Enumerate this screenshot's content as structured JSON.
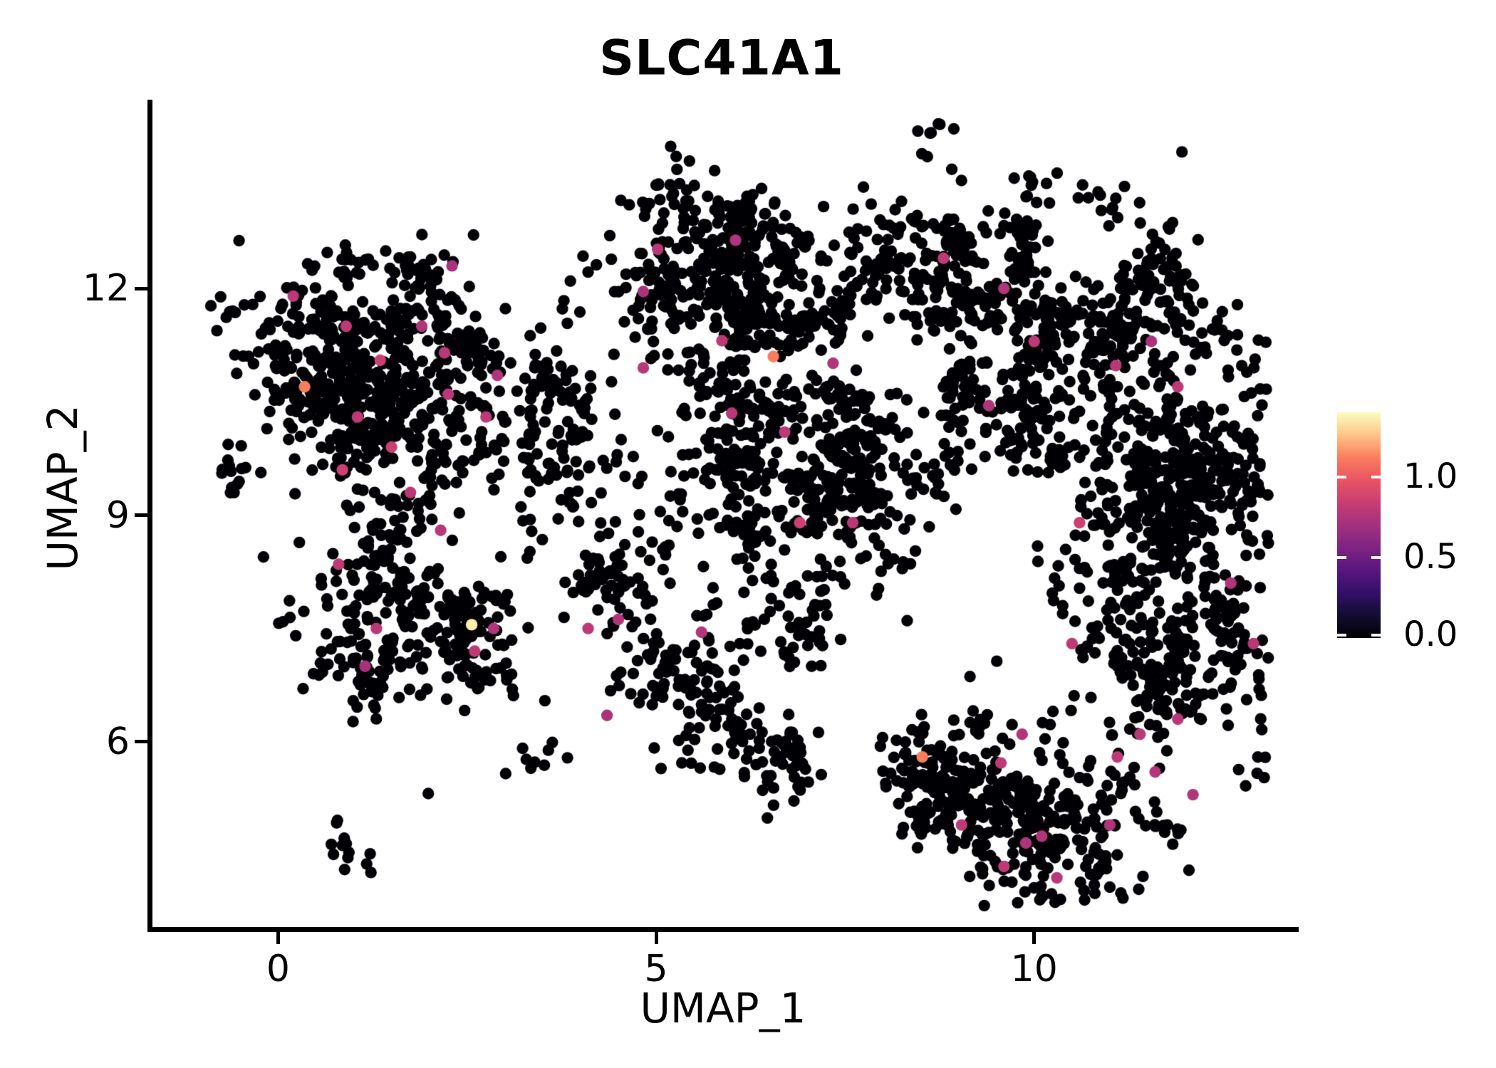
{
  "figure": {
    "title": "SLC41A1"
  },
  "chart_data": {
    "type": "scatter",
    "title": "SLC41A1",
    "xlabel": "UMAP_1",
    "ylabel": "UMAP_2",
    "xlim": [
      -1.7,
      13.47
    ],
    "ylim": [
      3.52,
      14.5
    ],
    "grid": false,
    "x_ticks": [
      {
        "value": 0,
        "label": "0"
      },
      {
        "value": 5,
        "label": "5"
      },
      {
        "value": 10,
        "label": "10"
      }
    ],
    "y_ticks": [
      {
        "value": 12,
        "label": "12"
      },
      {
        "value": 9,
        "label": "9"
      },
      {
        "value": 6,
        "label": "6"
      }
    ],
    "point_radius_px": 8.2,
    "zero_expression_color": "#000004",
    "n_points": 4384,
    "seed": 20,
    "density_clusters": [
      {
        "name": "left-main",
        "cx": 1.35,
        "cy": 10.65,
        "sx": 0.95,
        "sy": 0.82,
        "n": 680
      },
      {
        "name": "left-top-fringe",
        "cx": 2.0,
        "cy": 12.0,
        "sx": 0.55,
        "sy": 0.3,
        "n": 60
      },
      {
        "name": "left-arm",
        "cx": 1.45,
        "cy": 7.6,
        "sx": 0.8,
        "sy": 0.58,
        "n": 200
      },
      {
        "name": "left-arm-knot",
        "cx": 2.62,
        "cy": 7.3,
        "sx": 0.27,
        "sy": 0.27,
        "n": 65
      },
      {
        "name": "left-arm-tip",
        "cx": 1.15,
        "cy": 6.6,
        "sx": 0.35,
        "sy": 0.3,
        "n": 30
      },
      {
        "name": "left-bridge",
        "cx": 3.9,
        "cy": 9.9,
        "sx": 0.75,
        "sy": 0.9,
        "n": 150
      },
      {
        "name": "mid-left-sparse",
        "cx": 4.5,
        "cy": 8.35,
        "sx": 0.5,
        "sy": 0.6,
        "n": 60
      },
      {
        "name": "top-middle",
        "cx": 6.0,
        "cy": 12.05,
        "sx": 0.85,
        "sy": 0.65,
        "n": 500
      },
      {
        "name": "middle",
        "cx": 6.85,
        "cy": 9.4,
        "sx": 0.85,
        "sy": 0.75,
        "n": 500
      },
      {
        "name": "right-top",
        "cx": 8.9,
        "cy": 12.25,
        "sx": 0.8,
        "sy": 0.6,
        "n": 280
      },
      {
        "name": "right-upper-mid",
        "cx": 9.85,
        "cy": 10.85,
        "sx": 0.6,
        "sy": 0.6,
        "n": 120
      },
      {
        "name": "mid-right-bridge",
        "cx": 9.55,
        "cy": 10.1,
        "sx": 0.65,
        "sy": 0.5,
        "n": 70
      },
      {
        "name": "far-right",
        "cx": 11.75,
        "cy": 8.55,
        "sx": 0.8,
        "sy": 1.7,
        "n": 830
      },
      {
        "name": "far-right-top",
        "cx": 11.2,
        "cy": 11.5,
        "sx": 0.65,
        "sy": 0.5,
        "n": 160
      },
      {
        "name": "bottom-right",
        "cx": 9.85,
        "cy": 4.95,
        "sx": 0.75,
        "sy": 0.6,
        "n": 370
      },
      {
        "name": "bottom-arm",
        "cx": 8.6,
        "cy": 5.55,
        "sx": 0.38,
        "sy": 0.26,
        "n": 75
      },
      {
        "name": "trail-a",
        "cx": 5.0,
        "cy": 6.8,
        "sx": 0.35,
        "sy": 0.3,
        "n": 55
      },
      {
        "name": "trail-b",
        "cx": 5.8,
        "cy": 6.2,
        "sx": 0.4,
        "sy": 0.35,
        "n": 60
      },
      {
        "name": "trail-c",
        "cx": 6.6,
        "cy": 5.7,
        "sx": 0.35,
        "sy": 0.3,
        "n": 50
      },
      {
        "name": "trail-d",
        "cx": 6.0,
        "cy": 7.5,
        "sx": 0.45,
        "sy": 0.4,
        "n": 45
      },
      {
        "name": "stray-bottom-left",
        "cx": 1.1,
        "cy": 4.8,
        "sx": 0.45,
        "sy": 0.3,
        "n": 14
      },
      {
        "name": "stray-mid-left",
        "cx": 3.3,
        "cy": 5.8,
        "sx": 0.3,
        "sy": 0.3,
        "n": 10
      }
    ],
    "highlight_points": [
      {
        "x": 0.2,
        "y": 11.9,
        "value": 0.78
      },
      {
        "x": 0.9,
        "y": 11.5,
        "value": 0.8
      },
      {
        "x": 1.9,
        "y": 11.5,
        "value": 0.75
      },
      {
        "x": 2.2,
        "y": 11.15,
        "value": 0.78
      },
      {
        "x": 1.35,
        "y": 11.05,
        "value": 0.85
      },
      {
        "x": 2.25,
        "y": 10.6,
        "value": 0.78
      },
      {
        "x": 2.9,
        "y": 10.85,
        "value": 0.75
      },
      {
        "x": 2.75,
        "y": 10.3,
        "value": 0.8
      },
      {
        "x": 1.05,
        "y": 10.3,
        "value": 0.8
      },
      {
        "x": 1.5,
        "y": 9.9,
        "value": 0.85
      },
      {
        "x": 0.85,
        "y": 9.6,
        "value": 0.85
      },
      {
        "x": 1.75,
        "y": 9.3,
        "value": 0.78
      },
      {
        "x": 2.15,
        "y": 8.8,
        "value": 0.78
      },
      {
        "x": 2.3,
        "y": 12.3,
        "value": 0.72
      },
      {
        "x": 0.35,
        "y": 10.7,
        "value": 1.12
      },
      {
        "x": 0.8,
        "y": 8.35,
        "value": 0.8
      },
      {
        "x": 1.3,
        "y": 7.5,
        "value": 0.78
      },
      {
        "x": 1.15,
        "y": 7.0,
        "value": 0.72
      },
      {
        "x": 2.85,
        "y": 7.5,
        "value": 0.75
      },
      {
        "x": 2.6,
        "y": 7.2,
        "value": 0.8
      },
      {
        "x": 2.56,
        "y": 7.55,
        "value": 1.36
      },
      {
        "x": 4.1,
        "y": 7.5,
        "value": 0.8
      },
      {
        "x": 4.5,
        "y": 7.62,
        "value": 0.75
      },
      {
        "x": 4.35,
        "y": 6.35,
        "value": 0.72
      },
      {
        "x": 5.6,
        "y": 7.45,
        "value": 0.75
      },
      {
        "x": 5.02,
        "y": 12.52,
        "value": 0.78
      },
      {
        "x": 6.05,
        "y": 12.64,
        "value": 0.75
      },
      {
        "x": 4.83,
        "y": 11.96,
        "value": 0.72
      },
      {
        "x": 5.87,
        "y": 11.31,
        "value": 0.8
      },
      {
        "x": 4.83,
        "y": 10.95,
        "value": 0.78
      },
      {
        "x": 7.34,
        "y": 11.01,
        "value": 0.75
      },
      {
        "x": 6.55,
        "y": 11.1,
        "value": 1.12
      },
      {
        "x": 6.0,
        "y": 10.35,
        "value": 0.78
      },
      {
        "x": 6.7,
        "y": 10.1,
        "value": 0.8
      },
      {
        "x": 6.9,
        "y": 8.9,
        "value": 0.85
      },
      {
        "x": 7.6,
        "y": 8.9,
        "value": 0.78
      },
      {
        "x": 8.8,
        "y": 12.4,
        "value": 0.8
      },
      {
        "x": 9.6,
        "y": 12.0,
        "value": 0.75
      },
      {
        "x": 10.0,
        "y": 11.3,
        "value": 0.8
      },
      {
        "x": 9.4,
        "y": 10.45,
        "value": 0.75
      },
      {
        "x": 11.08,
        "y": 10.98,
        "value": 0.78
      },
      {
        "x": 11.55,
        "y": 11.3,
        "value": 0.72
      },
      {
        "x": 11.9,
        "y": 10.7,
        "value": 0.8
      },
      {
        "x": 10.6,
        "y": 8.9,
        "value": 0.85
      },
      {
        "x": 12.6,
        "y": 8.1,
        "value": 0.75
      },
      {
        "x": 12.9,
        "y": 7.3,
        "value": 0.78
      },
      {
        "x": 10.5,
        "y": 7.3,
        "value": 0.8
      },
      {
        "x": 11.4,
        "y": 6.1,
        "value": 0.78
      },
      {
        "x": 11.1,
        "y": 5.8,
        "value": 0.8
      },
      {
        "x": 11.6,
        "y": 5.6,
        "value": 0.75
      },
      {
        "x": 12.1,
        "y": 5.3,
        "value": 0.75
      },
      {
        "x": 11.9,
        "y": 6.3,
        "value": 0.78
      },
      {
        "x": 11.0,
        "y": 4.9,
        "value": 0.75
      },
      {
        "x": 8.52,
        "y": 5.8,
        "value": 1.12
      },
      {
        "x": 9.56,
        "y": 5.72,
        "value": 0.8
      },
      {
        "x": 9.84,
        "y": 6.1,
        "value": 0.75
      },
      {
        "x": 9.04,
        "y": 4.9,
        "value": 0.8
      },
      {
        "x": 9.89,
        "y": 4.66,
        "value": 0.75
      },
      {
        "x": 10.1,
        "y": 4.75,
        "value": 0.75
      },
      {
        "x": 9.6,
        "y": 4.35,
        "value": 0.8
      },
      {
        "x": 10.3,
        "y": 4.2,
        "value": 0.78
      }
    ],
    "colorbar": {
      "vmin": 0.0,
      "vmax": 1.4,
      "colormap": "magma",
      "ticks": [
        {
          "value": 1.0,
          "label": "1.0"
        },
        {
          "value": 0.5,
          "label": "0.5"
        },
        {
          "value": 0.0,
          "label": "0.0"
        }
      ],
      "gradient_stops": [
        {
          "pos": 0.0,
          "color": "#000004"
        },
        {
          "pos": 0.1,
          "color": "#120d31"
        },
        {
          "pos": 0.2,
          "color": "#331068"
        },
        {
          "pos": 0.3,
          "color": "#59157e"
        },
        {
          "pos": 0.4,
          "color": "#7e2482"
        },
        {
          "pos": 0.5,
          "color": "#a3307e"
        },
        {
          "pos": 0.6,
          "color": "#c83e73"
        },
        {
          "pos": 0.7,
          "color": "#e95462"
        },
        {
          "pos": 0.8,
          "color": "#fa7d5e"
        },
        {
          "pos": 0.9,
          "color": "#fec488"
        },
        {
          "pos": 1.0,
          "color": "#fcfdbf"
        }
      ]
    }
  }
}
